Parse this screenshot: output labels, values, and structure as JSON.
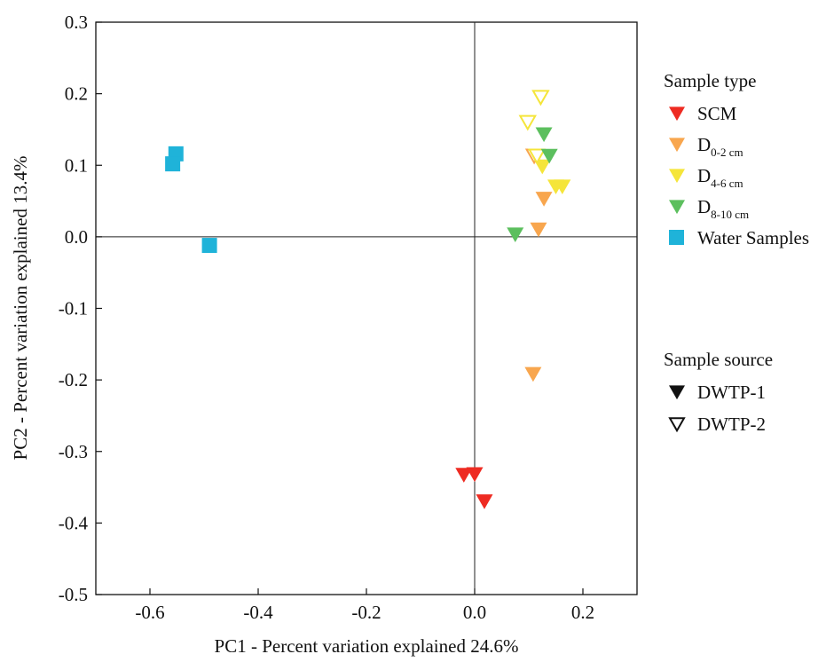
{
  "chart_data": {
    "type": "scatter",
    "xlabel": "PC1 - Percent variation explained 24.6%",
    "ylabel": "PC2 - Percent variation explained 13.4%",
    "xlim": [
      -0.7,
      0.3
    ],
    "ylim": [
      -0.5,
      0.3
    ],
    "x_ticks": [
      -0.6,
      -0.4,
      -0.2,
      0.0,
      0.2
    ],
    "x_tick_labels": [
      "-0.6",
      "-0.4",
      "-0.2",
      "0.0",
      "0.2"
    ],
    "y_ticks": [
      0.3,
      0.2,
      0.1,
      0.0,
      -0.1,
      -0.2,
      -0.3,
      -0.4,
      -0.5
    ],
    "y_tick_labels": [
      "0.3",
      "0.2",
      "0.1",
      "0.0",
      "-0.1",
      "-0.2",
      "-0.3",
      "-0.4",
      "-0.5"
    ],
    "reference_lines": {
      "x": 0.0,
      "y": 0.0
    },
    "grid": false,
    "legend_placement": "right",
    "legend": {
      "sample_type_title": "Sample type",
      "sample_source_title": "Sample source",
      "sample_types": [
        {
          "id": "scm",
          "label": "SCM",
          "sub": "",
          "color": "#ee2b22",
          "marker": "triangle-down"
        },
        {
          "id": "d02",
          "label": "D",
          "sub": "0-2 cm",
          "color": "#f8a64e",
          "marker": "triangle-down"
        },
        {
          "id": "d46",
          "label": "D",
          "sub": "4-6 cm",
          "color": "#f5e53a",
          "marker": "triangle-down"
        },
        {
          "id": "d810",
          "label": "D",
          "sub": "8-10 cm",
          "color": "#5cbf5e",
          "marker": "triangle-down"
        },
        {
          "id": "water",
          "label": "Water Samples",
          "sub": "",
          "color": "#1fb3d9",
          "marker": "square"
        }
      ],
      "sample_sources": [
        {
          "id": "dwtp1",
          "label": "DWTP-1",
          "style": "filled"
        },
        {
          "id": "dwtp2",
          "label": "DWTP-2",
          "style": "open"
        }
      ]
    },
    "series": [
      {
        "type_id": "water",
        "source": "dwtp1",
        "points": [
          [
            -0.552,
            0.116
          ],
          [
            -0.558,
            0.102
          ],
          [
            -0.49,
            -0.012
          ]
        ]
      },
      {
        "type_id": "scm",
        "source": "dwtp1",
        "points": [
          [
            -0.02,
            -0.333
          ],
          [
            0.0,
            -0.332
          ],
          [
            0.018,
            -0.37
          ]
        ]
      },
      {
        "type_id": "d02",
        "source": "dwtp1",
        "points": [
          [
            0.128,
            0.053
          ],
          [
            0.118,
            0.01
          ],
          [
            0.108,
            -0.192
          ]
        ]
      },
      {
        "type_id": "d02",
        "source": "dwtp2",
        "points": [
          [
            0.11,
            0.113
          ]
        ]
      },
      {
        "type_id": "d46",
        "source": "dwtp1",
        "points": [
          [
            0.125,
            0.098
          ],
          [
            0.15,
            0.07
          ],
          [
            0.162,
            0.07
          ]
        ]
      },
      {
        "type_id": "d46",
        "source": "dwtp2",
        "points": [
          [
            0.122,
            0.195
          ],
          [
            0.098,
            0.16
          ],
          [
            0.115,
            0.113
          ]
        ]
      },
      {
        "type_id": "d810",
        "source": "dwtp1",
        "points": [
          [
            0.128,
            0.143
          ],
          [
            0.138,
            0.113
          ],
          [
            0.075,
            0.003
          ]
        ]
      }
    ]
  }
}
